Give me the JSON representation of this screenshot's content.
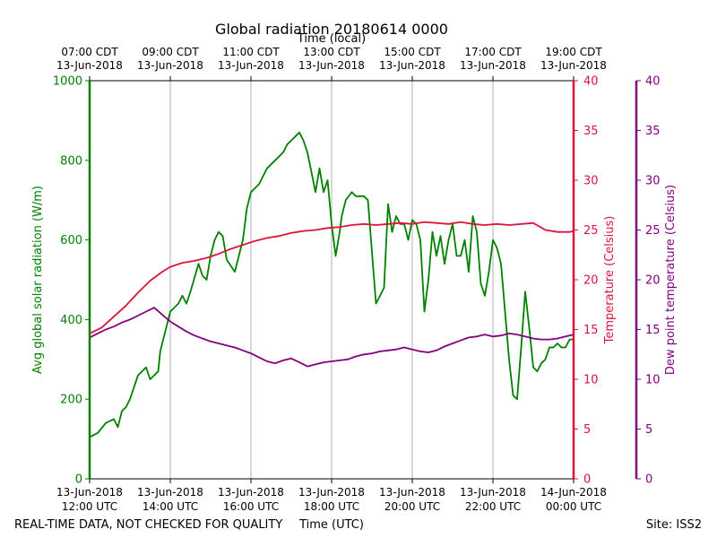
{
  "chart_data": {
    "type": "line",
    "title": "Global radiation 20180614 0000",
    "top_axis_label": "Time (local)",
    "xlabel": "Time (UTC)",
    "top_ticks": [
      [
        "07:00 CDT",
        "13-Jun-2018"
      ],
      [
        "09:00 CDT",
        "13-Jun-2018"
      ],
      [
        "11:00 CDT",
        "13-Jun-2018"
      ],
      [
        "13:00 CDT",
        "13-Jun-2018"
      ],
      [
        "15:00 CDT",
        "13-Jun-2018"
      ],
      [
        "17:00 CDT",
        "13-Jun-2018"
      ],
      [
        "19:00 CDT",
        "13-Jun-2018"
      ]
    ],
    "bottom_ticks": [
      [
        "13-Jun-2018",
        "12:00 UTC"
      ],
      [
        "13-Jun-2018",
        "14:00 UTC"
      ],
      [
        "13-Jun-2018",
        "16:00 UTC"
      ],
      [
        "13-Jun-2018",
        "18:00 UTC"
      ],
      [
        "13-Jun-2018",
        "20:00 UTC"
      ],
      [
        "13-Jun-2018",
        "22:00 UTC"
      ],
      [
        "14-Jun-2018",
        "00:00 UTC"
      ]
    ],
    "xlim_hours_utc": [
      12,
      24
    ],
    "grid": true,
    "axes": {
      "radiation": {
        "label": "Avg global solar radiation (W/m)",
        "ylim": [
          0,
          1000
        ],
        "ticks": [
          0,
          200,
          400,
          600,
          800,
          1000
        ],
        "color": "#008000"
      },
      "temperature": {
        "label": "Temperature (Celsius)",
        "ylim": [
          0,
          40
        ],
        "ticks": [
          0,
          5,
          10,
          15,
          20,
          25,
          30,
          35,
          40
        ],
        "color": "#dc143c"
      },
      "dewpoint": {
        "label": "Dew point temperature (Celsius)",
        "ylim": [
          0,
          40
        ],
        "ticks": [
          0,
          5,
          10,
          15,
          20,
          25,
          30,
          35,
          40
        ],
        "color": "#800080"
      }
    },
    "series": [
      {
        "name": "Avg global solar radiation",
        "axis": "radiation",
        "color": "#008000",
        "x": [
          12.0,
          12.2,
          12.4,
          12.6,
          12.7,
          12.8,
          12.9,
          13.0,
          13.2,
          13.4,
          13.5,
          13.6,
          13.7,
          13.75,
          13.9,
          14.0,
          14.2,
          14.3,
          14.4,
          14.5,
          14.7,
          14.8,
          14.9,
          15.0,
          15.1,
          15.2,
          15.3,
          15.4,
          15.6,
          15.7,
          15.8,
          15.9,
          16.0,
          16.2,
          16.4,
          16.6,
          16.8,
          16.9,
          17.1,
          17.2,
          17.3,
          17.4,
          17.5,
          17.6,
          17.7,
          17.8,
          17.9,
          18.0,
          18.1,
          18.2,
          18.25,
          18.35,
          18.5,
          18.6,
          18.8,
          18.9,
          19.1,
          19.2,
          19.3,
          19.4,
          19.5,
          19.6,
          19.7,
          19.8,
          19.9,
          20.0,
          20.1,
          20.2,
          20.3,
          20.4,
          20.5,
          20.6,
          20.7,
          20.8,
          20.9,
          21.0,
          21.1,
          21.2,
          21.3,
          21.4,
          21.5,
          21.6,
          21.7,
          21.8,
          21.9,
          22.0,
          22.1,
          22.2,
          22.3,
          22.4,
          22.5,
          22.6,
          22.7,
          22.8,
          22.9,
          23.0,
          23.1,
          23.2,
          23.3,
          23.4,
          23.5,
          23.6,
          23.7,
          23.8,
          23.9,
          24.0
        ],
        "y": [
          105,
          115,
          140,
          150,
          130,
          170,
          180,
          200,
          260,
          280,
          250,
          260,
          270,
          320,
          380,
          420,
          440,
          460,
          440,
          470,
          540,
          510,
          500,
          560,
          600,
          620,
          610,
          550,
          520,
          560,
          600,
          680,
          720,
          740,
          780,
          800,
          820,
          840,
          860,
          870,
          850,
          820,
          770,
          720,
          780,
          720,
          750,
          640,
          560,
          620,
          660,
          700,
          720,
          710,
          710,
          700,
          440,
          460,
          480,
          690,
          620,
          660,
          640,
          640,
          600,
          650,
          640,
          600,
          420,
          500,
          620,
          560,
          610,
          540,
          600,
          640,
          560,
          560,
          600,
          520,
          660,
          620,
          490,
          460,
          520,
          600,
          580,
          540,
          420,
          300,
          210,
          200,
          330,
          470,
          380,
          280,
          270,
          290,
          300,
          330,
          330,
          340,
          330,
          330,
          350,
          350
        ],
        "x_note": "radiation series indexed by hour UTC"
      },
      {
        "name": "Temperature",
        "axis": "temperature",
        "color": "#dc143c",
        "x": [
          12.0,
          12.3,
          12.6,
          12.9,
          13.2,
          13.5,
          13.8,
          14.0,
          14.3,
          14.6,
          14.9,
          15.2,
          15.5,
          15.8,
          16.1,
          16.4,
          16.7,
          17.0,
          17.3,
          17.6,
          17.9,
          18.2,
          18.5,
          18.8,
          19.1,
          19.4,
          19.7,
          20.0,
          20.3,
          20.6,
          20.9,
          21.2,
          21.5,
          21.8,
          22.1,
          22.4,
          22.7,
          23.0,
          23.3,
          23.6,
          23.9,
          24.0
        ],
        "y": [
          14.6,
          15.2,
          16.3,
          17.4,
          18.7,
          19.9,
          20.8,
          21.3,
          21.7,
          21.9,
          22.2,
          22.6,
          23.1,
          23.5,
          23.9,
          24.2,
          24.4,
          24.7,
          24.9,
          25.0,
          25.2,
          25.3,
          25.5,
          25.6,
          25.5,
          25.6,
          25.7,
          25.6,
          25.8,
          25.7,
          25.6,
          25.8,
          25.6,
          25.5,
          25.6,
          25.5,
          25.6,
          25.7,
          25.0,
          24.8,
          24.8,
          24.9
        ]
      },
      {
        "name": "Dew point temperature",
        "axis": "dewpoint",
        "color": "#800080",
        "x": [
          12.0,
          12.2,
          12.4,
          12.6,
          12.8,
          13.0,
          13.2,
          13.4,
          13.6,
          13.8,
          14.0,
          14.2,
          14.4,
          14.6,
          14.8,
          15.0,
          15.2,
          15.4,
          15.6,
          15.8,
          16.0,
          16.2,
          16.4,
          16.6,
          16.8,
          17.0,
          17.2,
          17.4,
          17.6,
          17.8,
          18.0,
          18.2,
          18.4,
          18.6,
          18.8,
          19.0,
          19.2,
          19.4,
          19.6,
          19.8,
          20.0,
          20.2,
          20.4,
          20.6,
          20.8,
          21.0,
          21.2,
          21.4,
          21.6,
          21.8,
          22.0,
          22.2,
          22.4,
          22.6,
          22.8,
          23.0,
          23.2,
          23.4,
          23.6,
          23.8,
          24.0
        ],
        "y": [
          14.2,
          14.6,
          15.0,
          15.3,
          15.7,
          16.0,
          16.4,
          16.8,
          17.2,
          16.5,
          15.8,
          15.3,
          14.8,
          14.4,
          14.1,
          13.8,
          13.6,
          13.4,
          13.2,
          12.9,
          12.6,
          12.2,
          11.8,
          11.6,
          11.9,
          12.1,
          11.7,
          11.3,
          11.5,
          11.7,
          11.8,
          11.9,
          12.0,
          12.3,
          12.5,
          12.6,
          12.8,
          12.9,
          13.0,
          13.2,
          13.0,
          12.8,
          12.7,
          12.9,
          13.3,
          13.6,
          13.9,
          14.2,
          14.3,
          14.5,
          14.3,
          14.4,
          14.6,
          14.5,
          14.3,
          14.1,
          14.0,
          14.0,
          14.1,
          14.3,
          14.5
        ]
      }
    ],
    "left_annotation": "REAL-TIME DATA, NOT CHECKED FOR QUALITY",
    "right_annotation": "Site: ISS2"
  }
}
